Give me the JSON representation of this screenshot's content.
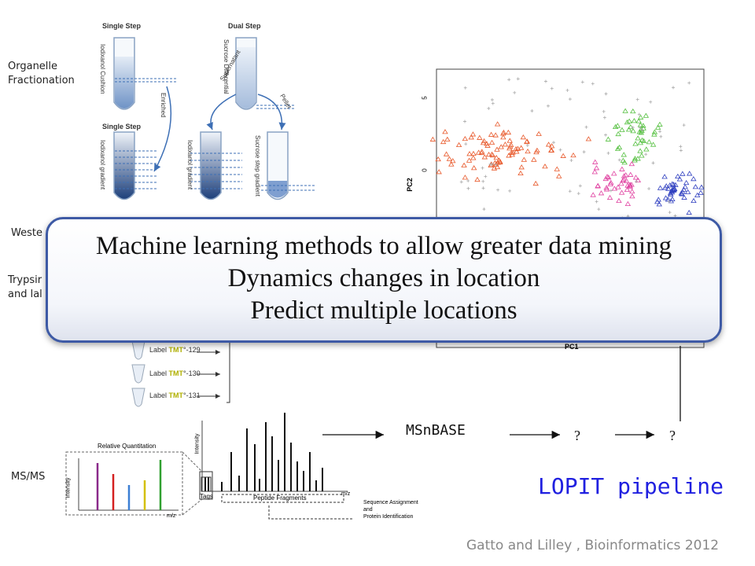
{
  "left_labels": {
    "organelle_1": "Organelle",
    "organelle_2": "Fractionation",
    "western": "Weste",
    "trypsin_1": "Trypsir",
    "trypsin_2": "and lal",
    "msms": "MS/MS"
  },
  "fractionation": {
    "single_step_top": "Single Step",
    "dual_step": "Dual Step",
    "single_step_bottom": "Single Step",
    "iodixanol_cushion": "Iodixanol Cushion",
    "sucrose_differential": "Sucrose Differential",
    "enriched": "Enriched",
    "supernatant": "Supernatant",
    "pellet": "Pellet",
    "iodixanol_gradient_1": "Iodixanol gradient",
    "iodixanol_gradient_2": "Iodixanol gradient",
    "sucrose_step_gradient": "Sucrose step gradient"
  },
  "labels_tmt": {
    "row1_prefix": "Label ",
    "row1_tmt": "TMT",
    "row1_suffix": "°-129",
    "row2_prefix": "Label ",
    "row2_tmt": "TMT",
    "row2_suffix": "°-130",
    "row3_prefix": "Label ",
    "row3_tmt": "TMT",
    "row3_suffix": "°-131"
  },
  "pca": {
    "ylabel": "PC2",
    "xlabel": "PC1",
    "tick_5": "5",
    "tick_0": "0"
  },
  "spectrum": {
    "relative_quantitation": "Relative Quantitation",
    "intensity_left": "Intensity",
    "intensity_right": "Intensity",
    "mz_left": "m/z",
    "mz_right": "m/z",
    "tags": "Tags",
    "peptide_fragments": "Peptide Fragments",
    "sequence_1": "Sequence Assignment",
    "sequence_2": "and",
    "sequence_3": "Protein Identification"
  },
  "overlay": {
    "line1": "Machine learning methods to allow greater data mining",
    "line2": "Dynamics changes in location",
    "line3": "Predict multiple locations"
  },
  "pipeline": {
    "msnbase": "MSnBASE",
    "q1": "?",
    "q2": "?",
    "title": "LOPIT pipeline"
  },
  "citation": "Gatto and Lilley , Bioinformatics 2012",
  "colors": {
    "overlay_border": "#3e5aa5",
    "pipeline_title": "#2020e0",
    "cluster_red": "#e8582a",
    "cluster_green": "#55c040",
    "cluster_pink": "#e040a0",
    "cluster_blue": "#3040c0"
  }
}
